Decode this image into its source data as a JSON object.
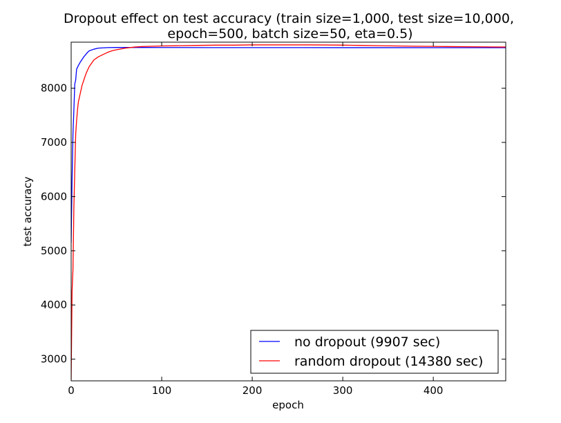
{
  "chart_data": {
    "type": "line",
    "title_line1": "Dropout effect on test accuracy (train size=1,000, test size=10,000,",
    "title_line2": "epoch=500, batch size=50, eta=0.5)",
    "xlabel": "epoch",
    "ylabel": "test accuracy",
    "xlim": [
      0,
      480
    ],
    "ylim": [
      2600,
      8850
    ],
    "x_ticks": [
      0,
      100,
      200,
      300,
      400
    ],
    "y_ticks": [
      3000,
      4000,
      5000,
      6000,
      7000,
      8000
    ],
    "legend_position": "lower-right",
    "grid": false,
    "series": [
      {
        "name": "no dropout (9907 sec)",
        "color": "#0000ff",
        "x": [
          0,
          1,
          2,
          3,
          4,
          5,
          6,
          8,
          10,
          12,
          14,
          16,
          18,
          20,
          25,
          30,
          35,
          40,
          50,
          60,
          70,
          80,
          100,
          120,
          150,
          200,
          250,
          300,
          350,
          400,
          450,
          480
        ],
        "y": [
          5150,
          6300,
          7150,
          7600,
          8080,
          8150,
          8350,
          8420,
          8480,
          8530,
          8580,
          8620,
          8660,
          8690,
          8720,
          8740,
          8745,
          8750,
          8752,
          8752,
          8752,
          8752,
          8751,
          8751,
          8750,
          8750,
          8750,
          8749,
          8749,
          8748,
          8748,
          8748
        ]
      },
      {
        "name": "random dropout (14380 sec)",
        "color": "#ff0000",
        "x": [
          0,
          1,
          2,
          3,
          4,
          5,
          6,
          7,
          8,
          10,
          12,
          14,
          16,
          18,
          20,
          25,
          30,
          35,
          40,
          45,
          50,
          60,
          70,
          80,
          90,
          100,
          120,
          140,
          160,
          180,
          200,
          220,
          240,
          260,
          280,
          300,
          320,
          340,
          360,
          380,
          400,
          420,
          440,
          460,
          480
        ],
        "y": [
          2620,
          4250,
          4650,
          5800,
          6500,
          7150,
          7400,
          7600,
          7750,
          7900,
          8050,
          8150,
          8250,
          8330,
          8400,
          8520,
          8580,
          8620,
          8660,
          8690,
          8710,
          8740,
          8760,
          8770,
          8775,
          8780,
          8785,
          8790,
          8795,
          8795,
          8800,
          8800,
          8800,
          8800,
          8798,
          8795,
          8790,
          8785,
          8780,
          8775,
          8772,
          8768,
          8765,
          8762,
          8760
        ]
      }
    ]
  }
}
